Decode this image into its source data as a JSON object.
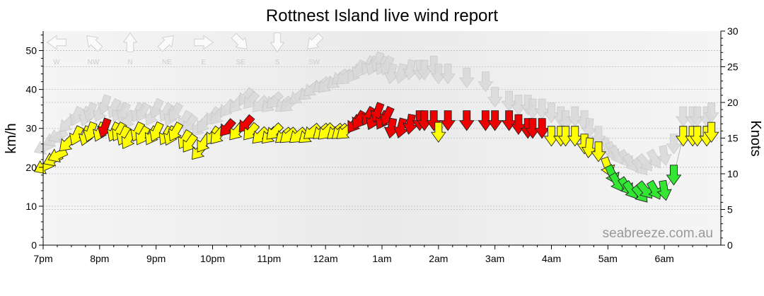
{
  "title": "Rottnest Island live wind report",
  "watermark": "seabreeze.com.au",
  "axes": {
    "left_label": "km/h",
    "right_label": "Knots",
    "left_ticks": [
      0,
      10,
      20,
      30,
      40,
      50
    ],
    "right_ticks": [
      0,
      5,
      10,
      15,
      20,
      25,
      30
    ],
    "x_ticks": [
      "7pm",
      "8pm",
      "9pm",
      "10pm",
      "11pm",
      "12am",
      "1am",
      "2am",
      "3am",
      "4am",
      "5am",
      "6am"
    ]
  },
  "compass": [
    {
      "label": "W",
      "deg": 270
    },
    {
      "label": "NW",
      "deg": 315
    },
    {
      "label": "N",
      "deg": 0
    },
    {
      "label": "NE",
      "deg": 45
    },
    {
      "label": "E",
      "deg": 90
    },
    {
      "label": "SE",
      "deg": 135
    },
    {
      "label": "S",
      "deg": 180
    },
    {
      "label": "SW",
      "deg": 225
    }
  ],
  "colors": {
    "calm": "#33e633",
    "moderate": "#ffff00",
    "strong": "#ee0000",
    "gust": "#d9d9d9",
    "plot_bg": "#f0f0f0",
    "grid": "#bbbbbb"
  },
  "chart_data": {
    "type": "line",
    "title": "Rottnest Island live wind report",
    "xlabel": "",
    "ylabel": "km/h",
    "ylabel_right": "Knots",
    "ylim": [
      0,
      55
    ],
    "ylim_right_knots": [
      0,
      30
    ],
    "x_range_hours": [
      0,
      12
    ],
    "color_scale": [
      {
        "color": "green",
        "max_kmh": 20
      },
      {
        "color": "yellow",
        "max_kmh": 30
      },
      {
        "color": "red",
        "min_kmh": 30
      }
    ],
    "series": [
      {
        "name": "",
        "x": [
          "7:00pm",
          "7:10pm",
          "7:15pm",
          "7:25pm",
          "7:35pm",
          "7:45pm",
          "7:50pm",
          "8:00pm",
          "8:05pm",
          "8:15pm",
          "8:20pm",
          "8:25pm",
          "8:30pm",
          "8:40pm",
          "8:45pm",
          "8:55pm",
          "9:00pm",
          "9:10pm",
          "9:15pm",
          "9:20pm",
          "9:30pm",
          "9:35pm",
          "9:45pm",
          "9:50pm",
          "10:00pm",
          "10:05pm",
          "10:15pm",
          "10:25pm",
          "10:35pm",
          "10:40pm",
          "10:50pm",
          "11:00pm",
          "11:05pm",
          "11:15pm",
          "11:20pm",
          "11:30pm",
          "11:40pm",
          "11:45pm",
          "11:55pm",
          "12:00am",
          "12:10am",
          "12:15am",
          "12:20am",
          "12:30am",
          "12:35am",
          "12:45am",
          "12:50am",
          "12:55am",
          "1:00am",
          "1:05am",
          "1:10am",
          "1:20am",
          "1:30am",
          "1:40am",
          "1:45am",
          "1:55am",
          "2:00am",
          "2:10am",
          "2:30am",
          "2:50am",
          "3:00am",
          "3:15am",
          "3:25am",
          "3:35am",
          "3:40am",
          "3:50am",
          "4:00am",
          "4:10am",
          "4:15am",
          "4:25am",
          "4:35am",
          "4:40am",
          "4:50am",
          "5:00am",
          "5:05am",
          "5:10am",
          "5:20am",
          "5:25am",
          "5:35am",
          "5:40am",
          "5:50am",
          "6:00am",
          "6:10am",
          "6:20am",
          "6:30am",
          "6:35am",
          "6:45am",
          "6:50am"
        ],
        "wind_kmh": [
          20,
          22,
          23,
          26,
          28,
          28,
          29,
          29,
          30,
          29,
          29,
          28,
          27,
          29,
          28,
          28,
          29,
          28,
          28,
          29,
          27,
          26,
          24,
          26,
          28,
          28,
          30,
          29,
          31,
          29,
          28,
          28,
          29,
          28,
          28,
          28,
          28,
          29,
          29,
          29,
          29,
          29,
          29,
          31,
          32,
          33,
          32,
          34,
          32,
          33,
          30,
          30,
          31,
          32,
          32,
          32,
          29,
          32,
          32,
          32,
          32,
          32,
          31,
          30,
          30,
          30,
          28,
          28,
          28,
          28,
          26,
          25,
          24,
          20,
          18,
          16,
          15,
          14,
          13,
          14,
          14,
          14,
          18,
          28,
          28,
          28,
          28,
          29
        ],
        "gust_kmh": [
          25,
          27,
          28,
          31,
          33,
          33,
          34,
          34,
          36,
          35,
          34,
          34,
          32,
          34,
          34,
          33,
          35,
          34,
          33,
          34,
          32,
          31,
          30,
          31,
          33,
          33,
          35,
          36,
          38,
          37,
          36,
          36,
          37,
          36,
          36,
          38,
          39,
          40,
          41,
          41,
          42,
          43,
          43,
          44,
          45,
          46,
          46,
          47,
          46,
          46,
          44,
          44,
          45,
          45,
          45,
          46,
          44,
          44,
          43,
          42,
          38,
          37,
          36,
          36,
          35,
          35,
          34,
          33,
          32,
          33,
          32,
          30,
          28,
          25,
          24,
          23,
          22,
          21,
          20,
          21,
          22,
          23,
          26,
          33,
          33,
          33,
          33,
          34
        ],
        "direction_from_deg": [
          245,
          245,
          245,
          225,
          205,
          200,
          200,
          205,
          200,
          205,
          210,
          205,
          210,
          205,
          210,
          210,
          205,
          210,
          205,
          210,
          210,
          215,
          220,
          215,
          215,
          220,
          220,
          220,
          220,
          220,
          225,
          225,
          225,
          230,
          230,
          230,
          230,
          230,
          230,
          225,
          230,
          230,
          230,
          215,
          210,
          210,
          205,
          200,
          210,
          205,
          190,
          195,
          190,
          180,
          180,
          180,
          180,
          180,
          180,
          180,
          180,
          180,
          180,
          180,
          180,
          180,
          180,
          180,
          180,
          180,
          180,
          185,
          180,
          160,
          155,
          150,
          145,
          145,
          140,
          140,
          150,
          170,
          180,
          180,
          180,
          180,
          180,
          180
        ]
      }
    ]
  }
}
